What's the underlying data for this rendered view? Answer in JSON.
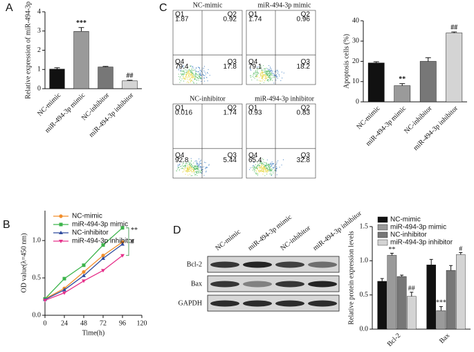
{
  "chart_data": [
    {
      "type": "bar",
      "panel": "A",
      "ylabel": "Relative expression of miR-494-3p",
      "categories": [
        "NC-mimic",
        "miR-494-3p mimic",
        "NC-inhibitor",
        "miR-494-3p inhibitor"
      ],
      "values": [
        1.02,
        2.98,
        1.13,
        0.41
      ],
      "errors": [
        0.07,
        0.2,
        0.03,
        0.03
      ],
      "significance": [
        null,
        "***",
        null,
        "##"
      ],
      "colors": [
        "#111111",
        "#9a9a9a",
        "#777777",
        "#d4d4d4"
      ],
      "ylim": [
        0,
        4
      ],
      "yticks": [
        0,
        1,
        2,
        3,
        4
      ]
    },
    {
      "type": "flow",
      "panel": "C",
      "plots": [
        {
          "title": "NC-mimic",
          "quadrants": [
            {
              "label": "Q1",
              "value": 1.87
            },
            {
              "label": "Q2",
              "value": 0.92
            },
            {
              "label": "Q3",
              "value": 17.8
            },
            {
              "label": "Q4",
              "value": 79.4
            }
          ]
        },
        {
          "title": "miR-494-3p mimic",
          "quadrants": [
            {
              "label": "Q1",
              "value": 1.74
            },
            {
              "label": "Q2",
              "value": 0.96
            },
            {
              "label": "Q3",
              "value": 18.2
            },
            {
              "label": "Q4",
              "value": 79.1
            }
          ]
        },
        {
          "title": "NC-inhibitor",
          "quadrants": [
            {
              "label": "Q1",
              "value": 0.016
            },
            {
              "label": "Q2",
              "value": 1.74
            },
            {
              "label": "Q3",
              "value": 5.44
            },
            {
              "label": "Q4",
              "value": 92.8
            }
          ]
        },
        {
          "title": "miR-494-3p inhibitor",
          "quadrants": [
            {
              "label": "Q1",
              "value": 0.93
            },
            {
              "label": "Q2",
              "value": 0.83
            },
            {
              "label": "Q3",
              "value": 32.8
            },
            {
              "label": "Q4",
              "value": 65.4
            }
          ]
        }
      ]
    },
    {
      "type": "bar",
      "ylabel": "Apoptosis cells (%)",
      "categories": [
        "NC-mimic",
        "miR-494-3p mimic",
        "NC-inhibitor",
        "miR-494-3p inhibitor"
      ],
      "values": [
        19.2,
        8,
        20,
        34
      ],
      "errors": [
        0.6,
        1,
        1.8,
        0.5
      ],
      "significance": [
        null,
        "**",
        null,
        "##"
      ],
      "colors": [
        "#111111",
        "#9a9a9a",
        "#777777",
        "#d4d4d4"
      ],
      "ylim": [
        0,
        40
      ],
      "yticks": [
        0,
        10,
        20,
        30,
        40
      ]
    },
    {
      "type": "line",
      "panel": "B",
      "xlabel": "Time(h)",
      "ylabel": "OD value(λ=450 nm)",
      "x": [
        0,
        24,
        48,
        72,
        96
      ],
      "series": [
        {
          "name": "NC-mimic",
          "color": "#f28e2b",
          "marker": "circle",
          "values": [
            0.22,
            0.36,
            0.58,
            0.8,
            0.98
          ]
        },
        {
          "name": "miR-494-3p mimic",
          "color": "#3cb44b",
          "marker": "square",
          "values": [
            0.22,
            0.49,
            0.67,
            0.94,
            1.17
          ]
        },
        {
          "name": "NC-inhibitor",
          "color": "#2e4a9e",
          "marker": "triangle",
          "values": [
            0.21,
            0.34,
            0.53,
            0.76,
            0.95
          ]
        },
        {
          "name": "miR-494-3p inhibitor",
          "color": "#e6308a",
          "marker": "triangle-down",
          "values": [
            0.2,
            0.3,
            0.46,
            0.6,
            0.8
          ]
        }
      ],
      "annotations": [
        "**",
        "#"
      ],
      "xlim": [
        0,
        120
      ],
      "xticks": [
        0,
        24,
        48,
        72,
        96,
        120
      ],
      "ylim": [
        0,
        1.4
      ],
      "yticks": [
        {
          "value": 0,
          "label": "0.0"
        },
        {
          "value": 0.5,
          "label": "0.5"
        },
        {
          "value": 1,
          "label": "1.0"
        }
      ]
    },
    {
      "type": "blot",
      "panel": "D",
      "lanes": [
        "NC-mimic",
        "miR-494-3p mimic",
        "NC-inhibitor",
        "miR-494-3p inhibitor"
      ],
      "rows": [
        "Bcl-2",
        "Bax",
        "GAPDH"
      ]
    },
    {
      "type": "bar",
      "ylabel": "Relative protein expression levels",
      "categories": [
        "Bcl-2",
        "Bax"
      ],
      "series": [
        {
          "name": "NC-mimic",
          "color": "#111111",
          "values": [
            0.7,
            0.94
          ],
          "errors": [
            0.04,
            0.08
          ],
          "significance": [
            null,
            null
          ]
        },
        {
          "name": "miR-494-3p mimic",
          "color": "#9a9a9a",
          "values": [
            1.08,
            0.27
          ],
          "errors": [
            0.03,
            0.06
          ],
          "significance": [
            "**",
            "***"
          ]
        },
        {
          "name": "NC-inhibitor",
          "color": "#777777",
          "values": [
            0.77,
            0.86
          ],
          "errors": [
            0.02,
            0.07
          ],
          "significance": [
            null,
            null
          ]
        },
        {
          "name": "miR-494-3p inhibitor",
          "color": "#d4d4d4",
          "values": [
            0.48,
            1.09
          ],
          "errors": [
            0.06,
            0.03
          ],
          "significance": [
            "##",
            "#"
          ]
        }
      ],
      "ylim": [
        0,
        1.5
      ],
      "yticks": [
        {
          "value": 0,
          "label": "0.0"
        },
        {
          "value": 0.5,
          "label": "0.5"
        },
        {
          "value": 1,
          "label": "1.0"
        },
        {
          "value": 1.5,
          "label": "1.5"
        }
      ]
    }
  ]
}
